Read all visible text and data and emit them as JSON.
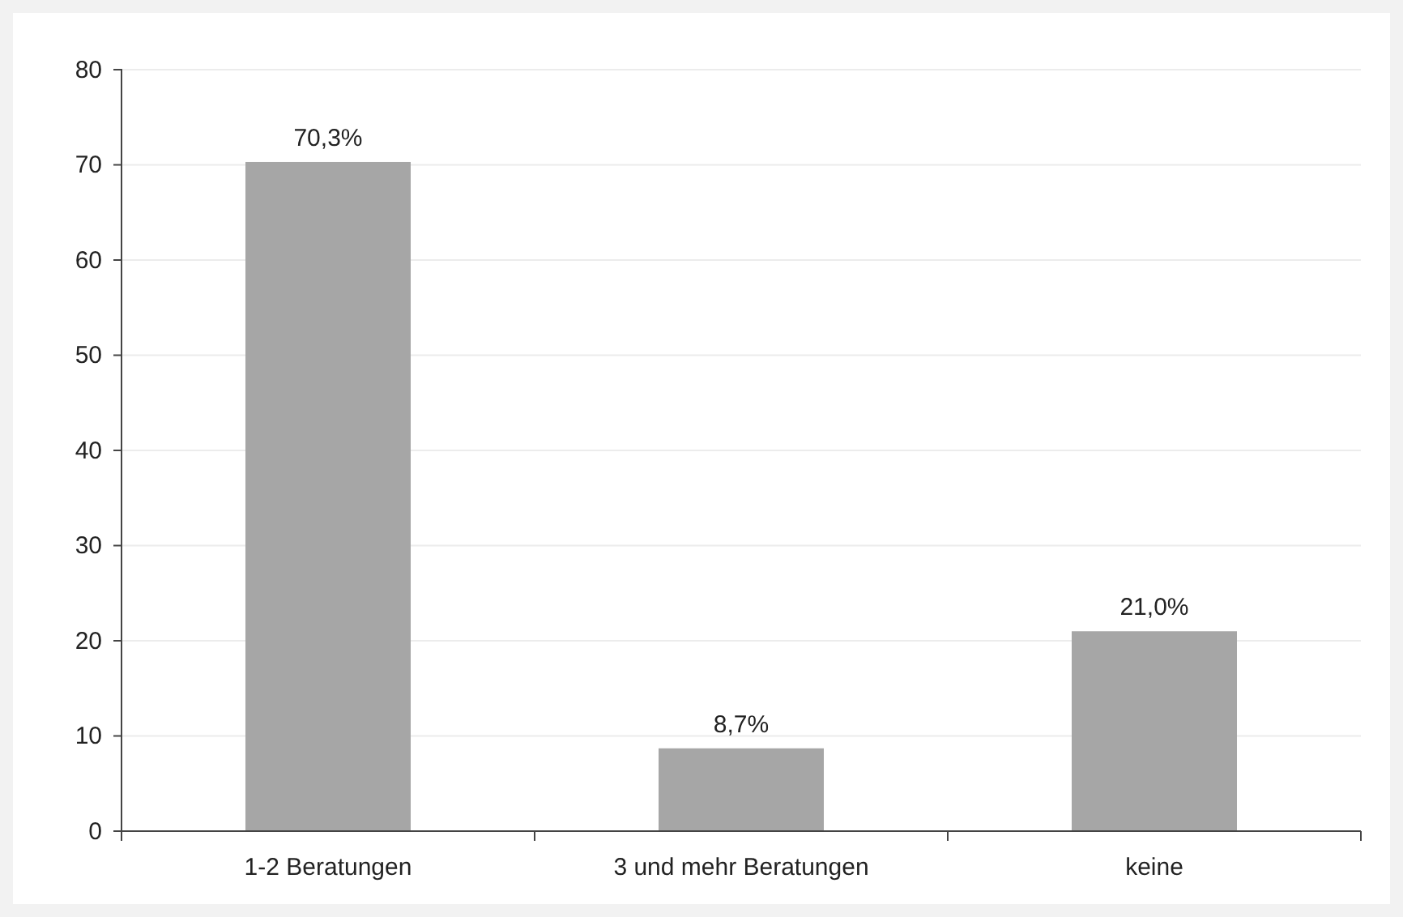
{
  "chart_data": {
    "type": "bar",
    "categories": [
      "1-2 Beratungen",
      "3 und mehr Beratungen",
      "keine"
    ],
    "values": [
      70.3,
      8.7,
      21.0
    ],
    "color": "#a6a6a6",
    "value_labels": [
      "70,3%",
      "8,7%",
      "21,0%"
    ],
    "ylim": [
      0,
      80
    ],
    "yticks": [
      0,
      10,
      20,
      30,
      40,
      50,
      60,
      70,
      80
    ],
    "grid": "y"
  }
}
